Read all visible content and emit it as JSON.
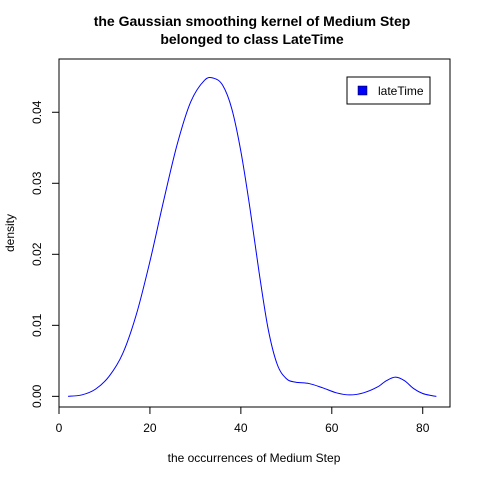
{
  "chart_data": {
    "type": "line",
    "title": "the Gaussian smoothing kernel of Medium Step belonged to class LateTime",
    "title_lines": [
      "the Gaussian smoothing kernel of Medium Step",
      "belonged to class LateTime"
    ],
    "xlabel": "the occurrences of Medium Step",
    "ylabel": "density",
    "xlim": [
      0,
      86
    ],
    "ylim": [
      -0.0015,
      0.0475
    ],
    "x_ticks": [
      0,
      20,
      40,
      60,
      80
    ],
    "x_tick_labels": [
      "0",
      "20",
      "40",
      "60",
      "80"
    ],
    "y_ticks": [
      0,
      0.01,
      0.02,
      0.03,
      0.04
    ],
    "y_tick_labels": [
      "0.00",
      "0.01",
      "0.02",
      "0.03",
      "0.04"
    ],
    "grid": false,
    "legend_position": "top-right",
    "series": [
      {
        "name": "lateTime",
        "color": "#0000ff",
        "x": [
          2,
          5,
          8,
          11,
          14,
          17,
          20,
          23,
          26,
          29,
          32,
          34,
          36,
          38,
          40,
          42,
          44,
          46,
          48,
          50,
          52,
          55,
          58,
          61,
          64,
          67,
          70,
          72,
          74,
          76,
          78,
          80,
          82,
          83
        ],
        "y": [
          0.0,
          0.0002,
          0.001,
          0.0028,
          0.006,
          0.0115,
          0.019,
          0.0275,
          0.0355,
          0.0415,
          0.0445,
          0.0448,
          0.0438,
          0.0405,
          0.0345,
          0.0265,
          0.0175,
          0.0095,
          0.0045,
          0.0025,
          0.002,
          0.0018,
          0.0012,
          0.0005,
          0.0002,
          0.0005,
          0.0013,
          0.0022,
          0.0027,
          0.0022,
          0.0011,
          0.0004,
          0.0001,
          0.0
        ]
      }
    ]
  }
}
